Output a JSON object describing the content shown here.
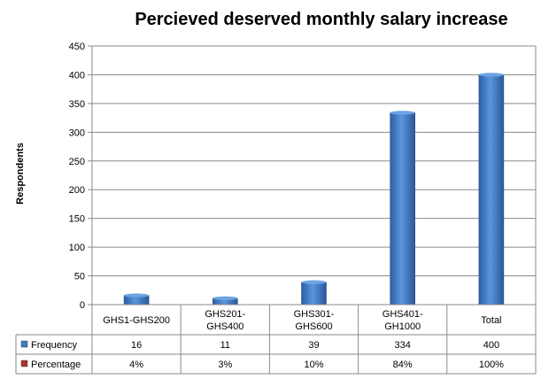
{
  "chart_data": {
    "type": "bar",
    "title": "Percieved deserved monthly salary increase",
    "xlabel": "",
    "ylabel": "Respondents",
    "ylim": [
      0,
      450
    ],
    "yticks": [
      0,
      50,
      100,
      150,
      200,
      250,
      300,
      350,
      400,
      450
    ],
    "grid": true,
    "categories": [
      [
        "GHS1-GHS200"
      ],
      [
        "GHS201-",
        "GHS400"
      ],
      [
        "GHS301-",
        "GHS600"
      ],
      [
        "GHS401-",
        "GH1000"
      ],
      [
        "Total"
      ]
    ],
    "series": [
      {
        "name": "Frequency",
        "color": "#3f78c6",
        "values": [
          16,
          11,
          39,
          334,
          400
        ],
        "labels": [
          "16",
          "11",
          "39",
          "334",
          "400"
        ]
      },
      {
        "name": "Percentage",
        "color": "#b0302c",
        "values": [
          4,
          3,
          10,
          84,
          100
        ],
        "labels": [
          "4%",
          "3%",
          "10%",
          "84%",
          "100%"
        ]
      }
    ],
    "data_table": true
  }
}
